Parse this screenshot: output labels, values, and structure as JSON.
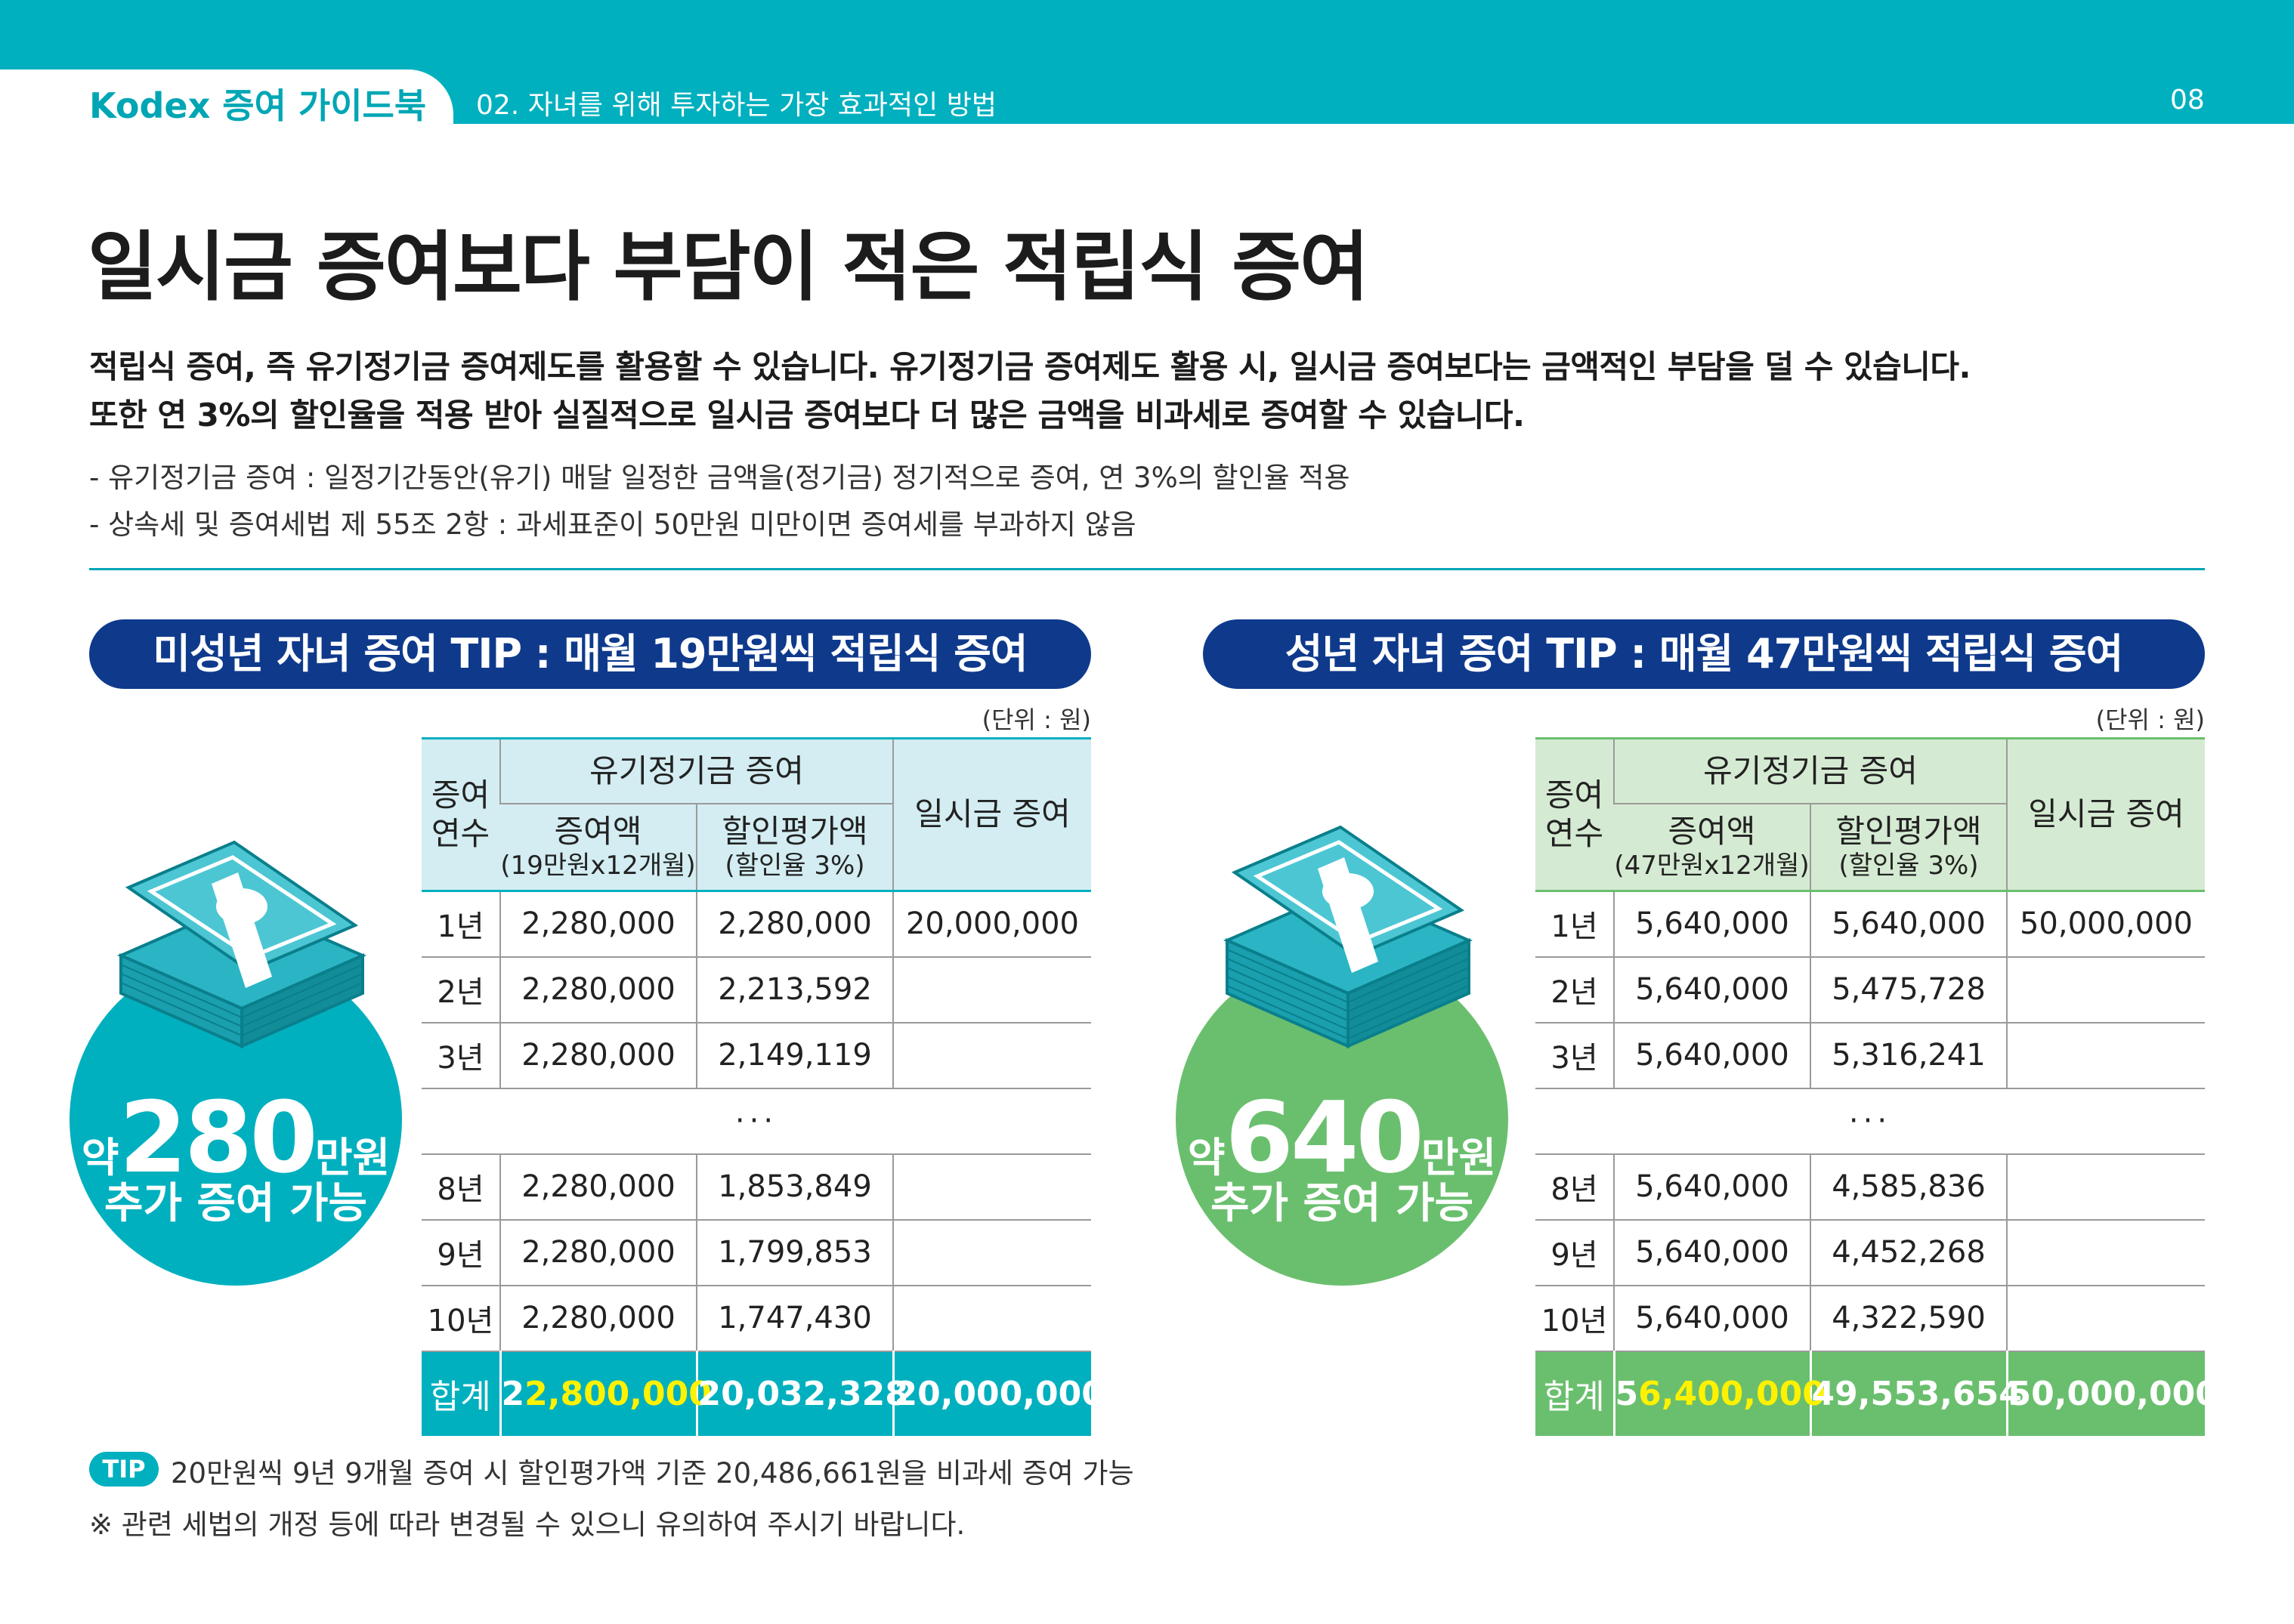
{
  "header": {
    "brand": "Kodex 증여 가이드북",
    "section": "02. 자녀를 위해 투자하는 가장 효과적인 방법",
    "page": "08"
  },
  "title": "일시금 증여보다 부담이 적은 적립식 증여",
  "intro": [
    "적립식 증여, 즉 유기정기금 증여제도를 활용할 수 있습니다. 유기정기금 증여제도 활용 시, 일시금 증여보다는 금액적인 부담을 덜 수 있습니다.",
    "또한 연 3%의 할인율을 적용 받아 실질적으로 일시금 증여보다 더 많은 금액을 비과세로 증여할 수 있습니다."
  ],
  "notes": [
    "- 유기정기금 증여 : 일정기간동안(유기) 매달 일정한 금액을(정기금) 정기적으로 증여, 연 3%의 할인율 적용",
    "- 상속세 및 증여세법 제 55조 2항 : 과세표준이 50만원 미만이면 증여세를 부과하지 않음"
  ],
  "colors": {
    "teal": "#00b0bf",
    "navy": "#0f3a8c",
    "green": "#6abf6e",
    "teal_light": "#d3edf2",
    "green_light": "#d5ead2"
  },
  "minor": {
    "pill": "미성년 자녀 증여 TIP : 매월 19만원씩 적립식 증여",
    "unit": "(단위 : 원)",
    "badge": {
      "prefix": "약",
      "number": "280",
      "suffix": "만원",
      "sub": "추가 증여 가능"
    },
    "headers": {
      "years": "증여 연수",
      "group": "유기정기금 증여",
      "amount": "증여액",
      "amount_sub": "(19만원x12개월)",
      "discount": "할인평가액",
      "discount_sub": "(할인율 3%)",
      "lump": "일시금 증여"
    },
    "rows": [
      {
        "year": "1년",
        "amount": "2,280,000",
        "discount": "2,280,000",
        "lump": "20,000,000"
      },
      {
        "year": "2년",
        "amount": "2,280,000",
        "discount": "2,213,592",
        "lump": ""
      },
      {
        "year": "3년",
        "amount": "2,280,000",
        "discount": "2,149,119",
        "lump": ""
      }
    ],
    "ellipsis": "···",
    "rows2": [
      {
        "year": "8년",
        "amount": "2,280,000",
        "discount": "1,853,849",
        "lump": ""
      },
      {
        "year": "9년",
        "amount": "2,280,000",
        "discount": "1,799,853",
        "lump": ""
      },
      {
        "year": "10년",
        "amount": "2,280,000",
        "discount": "1,747,430",
        "lump": ""
      }
    ],
    "total": {
      "label": "합계",
      "amount_lead": "2",
      "amount_rest": "2,800,000",
      "discount": "20,032,328",
      "lump": "20,000,000"
    }
  },
  "adult": {
    "pill": "성년 자녀 증여 TIP : 매월 47만원씩 적립식 증여",
    "unit": "(단위 : 원)",
    "badge": {
      "prefix": "약",
      "number": "640",
      "suffix": "만원",
      "sub": "추가 증여 가능"
    },
    "headers": {
      "years": "증여 연수",
      "group": "유기정기금 증여",
      "amount": "증여액",
      "amount_sub": "(47만원x12개월)",
      "discount": "할인평가액",
      "discount_sub": "(할인율 3%)",
      "lump": "일시금 증여"
    },
    "rows": [
      {
        "year": "1년",
        "amount": "5,640,000",
        "discount": "5,640,000",
        "lump": "50,000,000"
      },
      {
        "year": "2년",
        "amount": "5,640,000",
        "discount": "5,475,728",
        "lump": ""
      },
      {
        "year": "3년",
        "amount": "5,640,000",
        "discount": "5,316,241",
        "lump": ""
      }
    ],
    "ellipsis": "···",
    "rows2": [
      {
        "year": "8년",
        "amount": "5,640,000",
        "discount": "4,585,836",
        "lump": ""
      },
      {
        "year": "9년",
        "amount": "5,640,000",
        "discount": "4,452,268",
        "lump": ""
      },
      {
        "year": "10년",
        "amount": "5,640,000",
        "discount": "4,322,590",
        "lump": ""
      }
    ],
    "total": {
      "label": "합계",
      "amount_lead": "5",
      "amount_rest": "6,400,000",
      "discount": "49,553,654",
      "lump": "50,000,000"
    }
  },
  "tip": {
    "label": "TIP",
    "text": "20만원씩 9년 9개월 증여 시 할인평가액 기준 20,486,661원을 비과세 증여 가능"
  },
  "caution": "※ 관련 세법의 개정 등에 따라 변경될 수 있으니 유의하여 주시기 바랍니다."
}
